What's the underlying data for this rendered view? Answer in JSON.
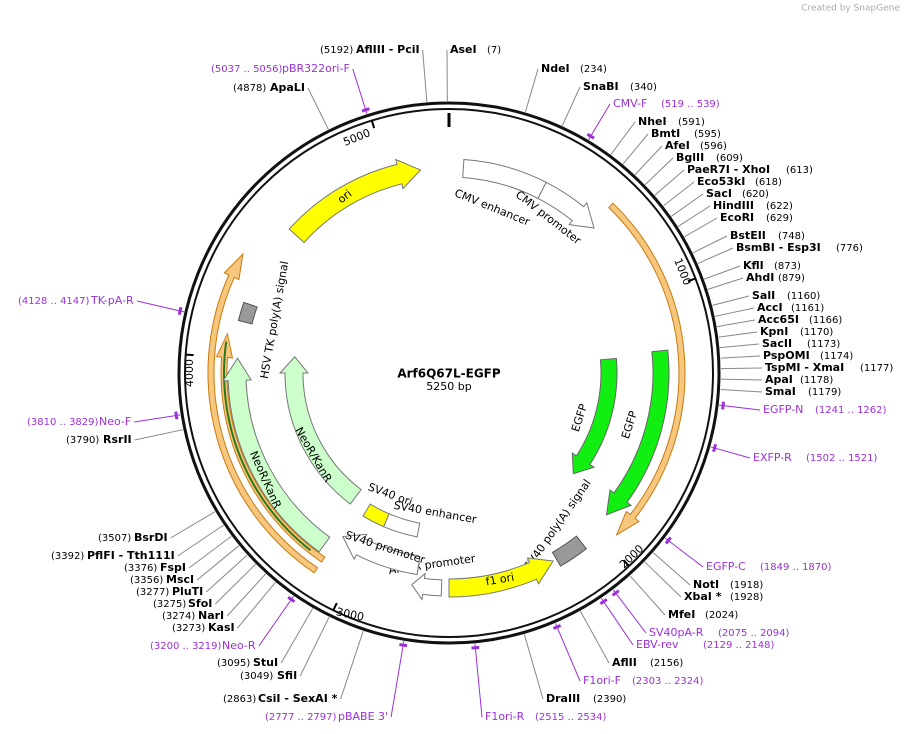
{
  "watermark": "Created by SnapGene",
  "plasmid": {
    "name": "Arf6Q67L-EGFP",
    "size": "5250 bp"
  },
  "sites": [
    {
      "name": "AflIII  - PciI",
      "position": "(5192)"
    },
    {
      "name": "AseI",
      "position": "(7)"
    },
    {
      "name": "NdeI",
      "position": "(234)"
    },
    {
      "name": "SnaBI",
      "position": "(340)"
    },
    {
      "name": "ApaLI",
      "position": "(4878)"
    },
    {
      "name": "NheI",
      "position": "(591)"
    },
    {
      "name": "BmtI",
      "position": "(595)"
    },
    {
      "name": "AfeI",
      "position": "(596)"
    },
    {
      "name": "BglII",
      "position": "(609)"
    },
    {
      "name": "PaeR7I  - XhoI",
      "position": "(613)"
    },
    {
      "name": "Eco53kI",
      "position": "(618)"
    },
    {
      "name": "SacI",
      "position": "(620)"
    },
    {
      "name": "HindIII",
      "position": "(622)"
    },
    {
      "name": "EcoRI",
      "position": "(629)"
    },
    {
      "name": "BstEII",
      "position": "(748)"
    },
    {
      "name": "BsmBI  - Esp3I",
      "position": "(776)"
    },
    {
      "name": "KflI",
      "position": "(873)"
    },
    {
      "name": "AhdI",
      "position": "(879)"
    },
    {
      "name": "SalI",
      "position": "(1160)"
    },
    {
      "name": "AccI",
      "position": "(1161)"
    },
    {
      "name": "Acc65I",
      "position": "(1166)"
    },
    {
      "name": "KpnI",
      "position": "(1170)"
    },
    {
      "name": "SacII",
      "position": "(1173)"
    },
    {
      "name": "PspOMI",
      "position": "(1174)"
    },
    {
      "name": "TspMI  - XmaI",
      "position": "(1177)"
    },
    {
      "name": "ApaI",
      "position": "(1178)"
    },
    {
      "name": "SmaI",
      "position": "(1179)"
    },
    {
      "name": "NotI",
      "position": "(1918)"
    },
    {
      "name": "XbaI  *",
      "position": "(1928)"
    },
    {
      "name": "MfeI",
      "position": "(2024)"
    },
    {
      "name": "AflII",
      "position": "(2156)"
    },
    {
      "name": "DraIII",
      "position": "(2390)"
    },
    {
      "name": "CsiI  - SexAI  *",
      "position": "(2863)"
    },
    {
      "name": "SfiI",
      "position": "(3049)"
    },
    {
      "name": "StuI",
      "position": "(3095)"
    },
    {
      "name": "KasI",
      "position": "(3273)"
    },
    {
      "name": "NarI",
      "position": "(3274)"
    },
    {
      "name": "SfoI",
      "position": "(3275)"
    },
    {
      "name": "PluTI",
      "position": "(3277)"
    },
    {
      "name": "MscI",
      "position": "(3356)"
    },
    {
      "name": "FspI",
      "position": "(3376)"
    },
    {
      "name": "PflFI  - Tth111I",
      "position": "(3392)"
    },
    {
      "name": "BsrDI",
      "position": "(3507)"
    },
    {
      "name": "RsrII",
      "position": "(3790)"
    }
  ],
  "primers": [
    {
      "name": "pBR322ori-F",
      "range": "(5037 .. 5056)"
    },
    {
      "name": "CMV-F",
      "range": "(519 .. 539)"
    },
    {
      "name": "EGFP-N",
      "range": "(1241 .. 1262)"
    },
    {
      "name": "EXFP-R",
      "range": "(1502 .. 1521)"
    },
    {
      "name": "EGFP-C",
      "range": "(1849 .. 1870)"
    },
    {
      "name": "SV40pA-R",
      "range": "(2075 .. 2094)"
    },
    {
      "name": "EBV-rev",
      "range": "(2129 .. 2148)"
    },
    {
      "name": "F1ori-F",
      "range": "(2303 .. 2324)"
    },
    {
      "name": "F1ori-R",
      "range": "(2515 .. 2534)"
    },
    {
      "name": "pBABE 3'",
      "range": "(2777 .. 2797)"
    },
    {
      "name": "Neo-R",
      "range": "(3200 .. 3219)"
    },
    {
      "name": "Neo-F",
      "range": "(3810 .. 3829)"
    },
    {
      "name": "TK-pA-R",
      "range": "(4128 .. 4147)"
    }
  ],
  "features": [
    "ori",
    "CMV enhancer",
    "CMV promoter",
    "EGFP",
    "EGFP",
    "SV40 poly(A) signal",
    "f1 ori",
    "AmpR promoter",
    "SV40 promoter",
    "SV40 ori",
    "SV40 enhancer",
    "NeoR/KanR",
    "NeoR/KanR",
    "HSV TK poly(A) signal"
  ],
  "ruler": [
    "1000",
    "2000",
    "3000",
    "4000",
    "5000"
  ]
}
